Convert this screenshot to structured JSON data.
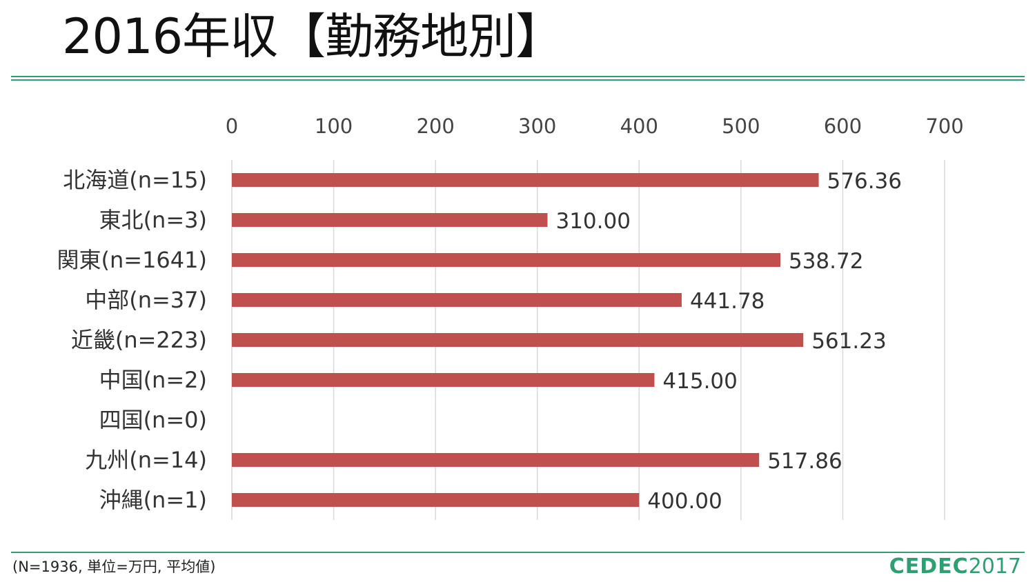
{
  "slide": {
    "title": "2016年収【勤務地別】",
    "note": "(N=1936, 単位=万円, 平均値)",
    "logo_main": "CEDEC",
    "logo_year": "2017"
  },
  "colors": {
    "bar": "#c0504d",
    "accent": "#2e9e73",
    "grid": "#d9d9d9"
  },
  "chart_data": {
    "type": "bar",
    "orientation": "horizontal",
    "categories": [
      "北海道(n=15)",
      "東北(n=3)",
      "関東(n=1641)",
      "中部(n=37)",
      "近畿(n=223)",
      "中国(n=2)",
      "四国(n=0)",
      "九州(n=14)",
      "沖縄(n=1)"
    ],
    "values": [
      576.36,
      310.0,
      538.72,
      441.78,
      561.23,
      415.0,
      null,
      517.86,
      400.0
    ],
    "data_labels": [
      "576.36",
      "310.00",
      "538.72",
      "441.78",
      "561.23",
      "415.00",
      "",
      "517.86",
      "400.00"
    ],
    "xlim": [
      0,
      700
    ],
    "xticks": [
      0,
      100,
      200,
      300,
      400,
      500,
      600,
      700
    ],
    "axis_position": "top",
    "grid": true,
    "legend": "none"
  }
}
